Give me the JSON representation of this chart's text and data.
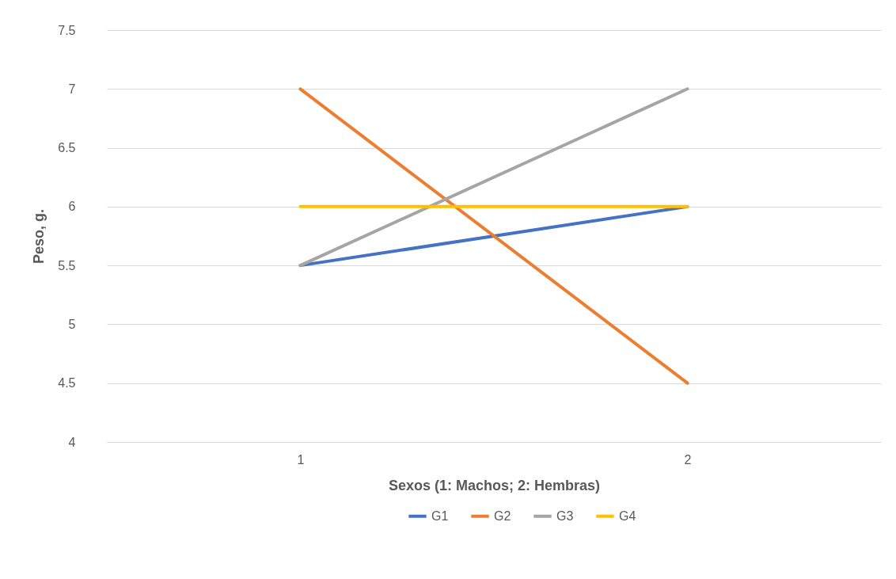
{
  "chart_data": {
    "type": "line",
    "xlabel": "Sexos (1: Machos; 2: Hembras)",
    "ylabel": "Peso, g.",
    "categories": [
      "1",
      "2"
    ],
    "series": [
      {
        "name": "G1",
        "color": "#4472c4",
        "values": [
          5.5,
          6
        ]
      },
      {
        "name": "G2",
        "color": "#ed7d31",
        "values": [
          7,
          4.5
        ]
      },
      {
        "name": "G3",
        "color": "#a5a5a5",
        "values": [
          5.5,
          7
        ]
      },
      {
        "name": "G4",
        "color": "#ffc000",
        "values": [
          6,
          6
        ]
      }
    ],
    "ylim": [
      4,
      7.5
    ],
    "yticks": [
      4,
      4.5,
      5,
      5.5,
      6,
      6.5,
      7,
      7.5
    ],
    "grid": "y",
    "legend": "bottom",
    "marker": "none",
    "line_style": "solid"
  }
}
